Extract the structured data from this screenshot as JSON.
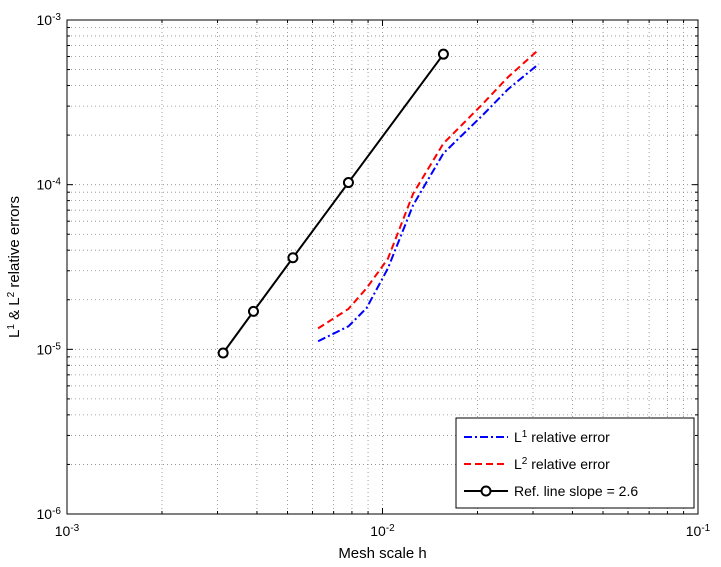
{
  "chart_data": {
    "type": "line",
    "title": "",
    "xlabel": "Mesh scale h",
    "ylabel": {
      "p1": "L",
      "s1": "1",
      "p2": " & L",
      "s2": "2",
      "p3": " relative errors"
    },
    "xscale": "log",
    "yscale": "log",
    "xlim": [
      0.001,
      0.1
    ],
    "ylim": [
      1e-06,
      0.001
    ],
    "grid": true,
    "legend_position": "bottom-right",
    "x_ticks": [
      {
        "base": "10",
        "exp": "-3",
        "value": 0.001
      },
      {
        "base": "10",
        "exp": "-2",
        "value": 0.01
      },
      {
        "base": "10",
        "exp": "-1",
        "value": 0.1
      }
    ],
    "y_ticks": [
      {
        "base": "10",
        "exp": "-6",
        "value": 1e-06
      },
      {
        "base": "10",
        "exp": "-5",
        "value": 1e-05
      },
      {
        "base": "10",
        "exp": "-4",
        "value": 0.0001
      },
      {
        "base": "10",
        "exp": "-3",
        "value": 0.001
      }
    ],
    "series": [
      {
        "name": "L1 relative error",
        "legend": {
          "p1": "L",
          "sup": "1",
          "p2": " relative error"
        },
        "color": "#0000ff",
        "style": "dashdot",
        "x": [
          0.00625,
          0.0078,
          0.0089,
          0.0104,
          0.0125,
          0.0156,
          0.0208,
          0.025,
          0.03125
        ],
        "y": [
          1.12e-05,
          1.38e-05,
          1.78e-05,
          3.1e-05,
          7.5e-05,
          0.000155,
          0.000265,
          0.00038,
          0.00054
        ]
      },
      {
        "name": "L2 relative error",
        "legend": {
          "p1": "L",
          "sup": "2",
          "p2": " relative error"
        },
        "color": "#ff0000",
        "style": "dashed",
        "x": [
          0.00625,
          0.0078,
          0.0089,
          0.0104,
          0.0125,
          0.0156,
          0.0208,
          0.025,
          0.03125
        ],
        "y": [
          1.34e-05,
          1.76e-05,
          2.35e-05,
          3.55e-05,
          8.8e-05,
          0.000178,
          0.00031,
          0.00045,
          0.00066
        ]
      },
      {
        "name": "Ref. line slope = 2.6",
        "legend": {
          "p1": "Ref. line slope = 2.6",
          "sup": "",
          "p2": ""
        },
        "color": "#000000",
        "style": "solid-circle",
        "x": [
          0.003125,
          0.0039,
          0.0052,
          0.0078,
          0.0156
        ],
        "y": [
          9.5e-06,
          1.7e-05,
          3.6e-05,
          0.000103,
          0.00062
        ]
      }
    ]
  }
}
